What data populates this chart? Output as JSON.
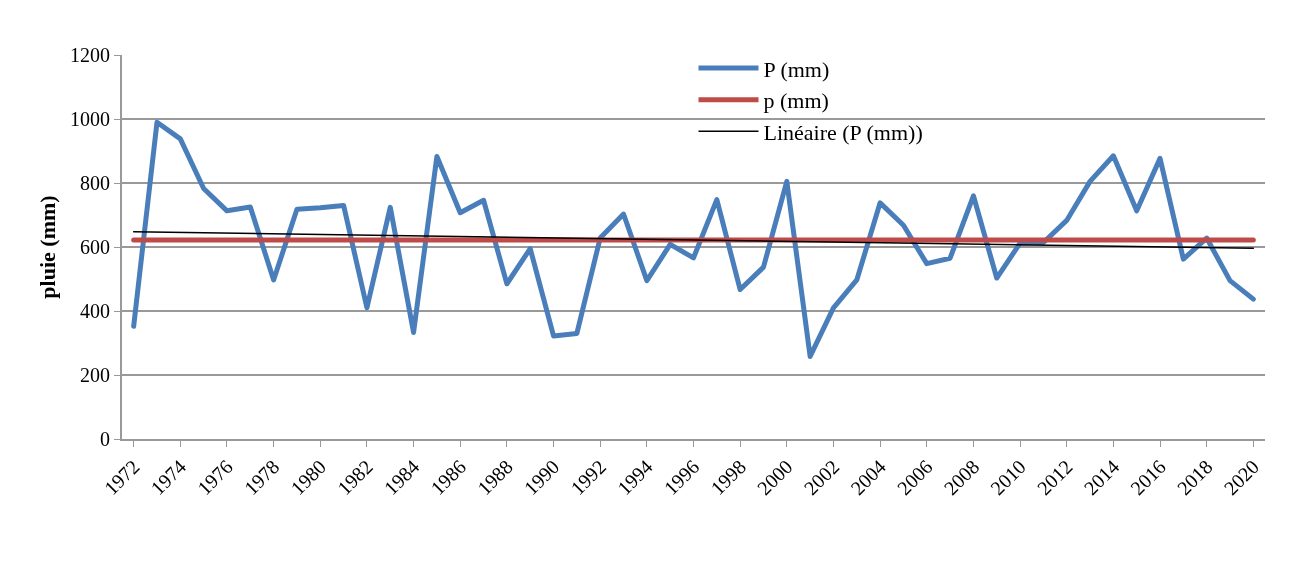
{
  "chart_data": {
    "type": "line",
    "ylabel": "pluie (mm)",
    "x": [
      1972,
      1973,
      1974,
      1975,
      1976,
      1977,
      1978,
      1979,
      1980,
      1981,
      1982,
      1983,
      1984,
      1985,
      1986,
      1987,
      1988,
      1989,
      1990,
      1991,
      1992,
      1993,
      1994,
      1995,
      1996,
      1997,
      1998,
      1999,
      2000,
      2001,
      2002,
      2003,
      2004,
      2005,
      2006,
      2007,
      2008,
      2009,
      2010,
      2011,
      2012,
      2013,
      2014,
      2015,
      2016,
      2017,
      2018,
      2019,
      2020
    ],
    "series": [
      {
        "name": "P (mm)",
        "color": "#4a7ebb",
        "values": [
          352,
          990,
          938,
          783,
          713,
          725,
          497,
          718,
          723,
          730,
          410,
          724,
          333,
          883,
          707,
          746,
          485,
          595,
          322,
          330,
          628,
          703,
          495,
          608,
          566,
          748,
          467,
          537,
          805,
          258,
          410,
          497,
          738,
          668,
          548,
          565,
          760,
          503,
          612,
          614,
          683,
          805,
          885,
          713,
          877,
          562,
          628,
          495,
          437
        ]
      },
      {
        "name": "p (mm)",
        "color": "#be4b48",
        "values": [
          622,
          622,
          622,
          622,
          622,
          622,
          622,
          622,
          622,
          622,
          622,
          622,
          622,
          622,
          622,
          622,
          622,
          622,
          622,
          622,
          622,
          622,
          622,
          622,
          622,
          622,
          622,
          622,
          622,
          622,
          622,
          622,
          622,
          622,
          622,
          622,
          622,
          622,
          622,
          622,
          622,
          622,
          622,
          622,
          622,
          622,
          622,
          622,
          622
        ]
      },
      {
        "name": "Linéaire (P (mm))",
        "color": "#000000",
        "type": "line",
        "x": [
          1972,
          2020
        ],
        "values": [
          648,
          596
        ]
      }
    ],
    "xlim": [
      1971.5,
      2020.5
    ],
    "xticks": [
      1972,
      1974,
      1976,
      1978,
      1980,
      1982,
      1984,
      1986,
      1988,
      1990,
      1992,
      1994,
      1996,
      1998,
      2000,
      2002,
      2004,
      2006,
      2008,
      2010,
      2012,
      2014,
      2016,
      2018,
      2020
    ],
    "ylim": [
      0,
      1200
    ],
    "yticks": [
      0,
      200,
      400,
      600,
      800,
      1000,
      1200
    ],
    "grid": "y",
    "legend": "top",
    "marker": "none",
    "line_style": "solid"
  }
}
